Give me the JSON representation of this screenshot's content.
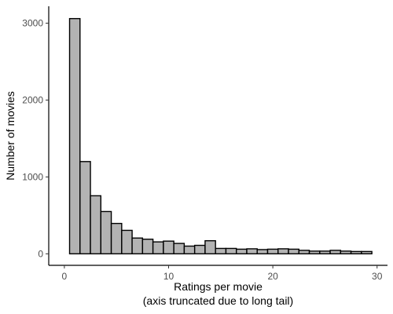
{
  "chart_data": {
    "type": "bar",
    "title": "",
    "xlabel": "Ratings per movie",
    "xlabel_note": "(axis truncated due to long tail)",
    "ylabel": "Number of movies",
    "xlim": [
      -1.5,
      31
    ],
    "ylim": [
      -150,
      3220
    ],
    "x_ticks": [
      0,
      10,
      20,
      30
    ],
    "y_ticks": [
      0,
      1000,
      2000,
      3000
    ],
    "grid": false,
    "bin_width": 1,
    "bins": [
      {
        "x0": 0.5,
        "x1": 1.5,
        "count": 3060
      },
      {
        "x0": 1.5,
        "x1": 2.5,
        "count": 1200
      },
      {
        "x0": 2.5,
        "x1": 3.5,
        "count": 755
      },
      {
        "x0": 3.5,
        "x1": 4.5,
        "count": 550
      },
      {
        "x0": 4.5,
        "x1": 5.5,
        "count": 395
      },
      {
        "x0": 5.5,
        "x1": 6.5,
        "count": 305
      },
      {
        "x0": 6.5,
        "x1": 7.5,
        "count": 205
      },
      {
        "x0": 7.5,
        "x1": 8.5,
        "count": 190
      },
      {
        "x0": 8.5,
        "x1": 9.5,
        "count": 155
      },
      {
        "x0": 9.5,
        "x1": 10.5,
        "count": 165
      },
      {
        "x0": 10.5,
        "x1": 11.5,
        "count": 135
      },
      {
        "x0": 11.5,
        "x1": 12.5,
        "count": 100
      },
      {
        "x0": 12.5,
        "x1": 13.5,
        "count": 110
      },
      {
        "x0": 13.5,
        "x1": 14.5,
        "count": 170
      },
      {
        "x0": 14.5,
        "x1": 15.5,
        "count": 70
      },
      {
        "x0": 15.5,
        "x1": 16.5,
        "count": 70
      },
      {
        "x0": 16.5,
        "x1": 17.5,
        "count": 60
      },
      {
        "x0": 17.5,
        "x1": 18.5,
        "count": 65
      },
      {
        "x0": 18.5,
        "x1": 19.5,
        "count": 55
      },
      {
        "x0": 19.5,
        "x1": 20.5,
        "count": 60
      },
      {
        "x0": 20.5,
        "x1": 21.5,
        "count": 65
      },
      {
        "x0": 21.5,
        "x1": 22.5,
        "count": 60
      },
      {
        "x0": 22.5,
        "x1": 23.5,
        "count": 45
      },
      {
        "x0": 23.5,
        "x1": 24.5,
        "count": 35
      },
      {
        "x0": 24.5,
        "x1": 25.5,
        "count": 35
      },
      {
        "x0": 25.5,
        "x1": 26.5,
        "count": 45
      },
      {
        "x0": 26.5,
        "x1": 27.5,
        "count": 35
      },
      {
        "x0": 27.5,
        "x1": 28.5,
        "count": 30
      },
      {
        "x0": 28.5,
        "x1": 29.5,
        "count": 30
      }
    ],
    "colors": {
      "bar_fill": "#b3b3b3",
      "bar_stroke": "#000000",
      "axis": "#000000",
      "tick_text": "#4d4d4d"
    }
  }
}
